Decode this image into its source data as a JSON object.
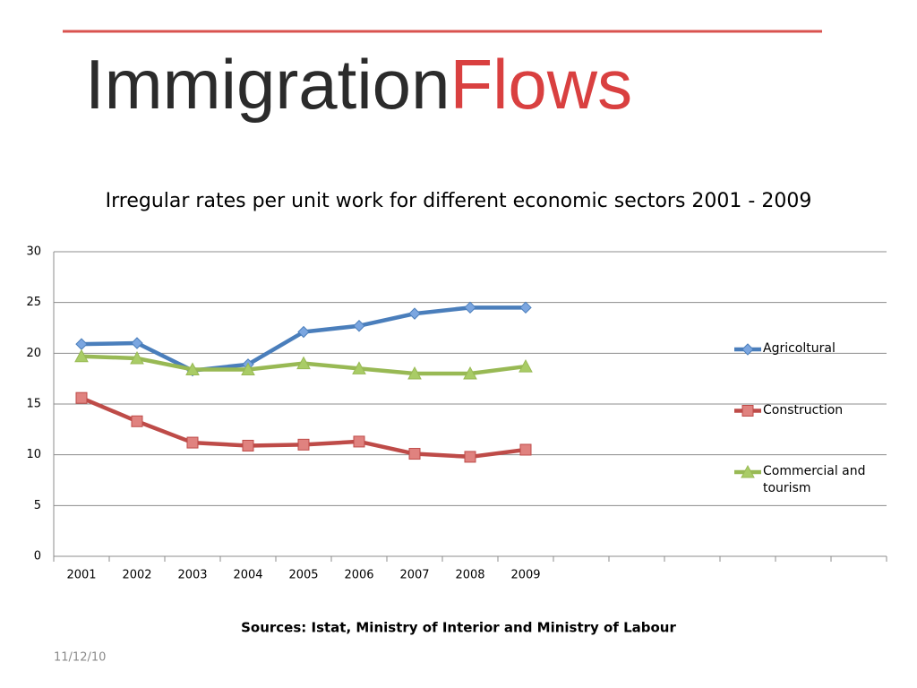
{
  "slide": {
    "logo_dark": "Immigration",
    "logo_red": "Flows",
    "source": "Sources: Istat, Ministry of Interior  and Ministry of Labour",
    "date": "11/12/10"
  },
  "chart_data": {
    "type": "line",
    "title": "Irregular rates per unit work for different economic sectors 2001 - 2009",
    "categories": [
      "2001",
      "2002",
      "2003",
      "2004",
      "2005",
      "2006",
      "2007",
      "2008",
      "2009",
      null,
      null,
      null,
      null,
      null,
      null
    ],
    "series": [
      {
        "name": "Agricoltural",
        "color": "#4a7ebb",
        "marker": "diamond",
        "marker_fill": "#7ba6e0",
        "values": [
          20.9,
          21.0,
          18.3,
          18.9,
          22.1,
          22.7,
          23.9,
          24.5,
          24.5,
          null,
          null,
          null,
          null,
          null,
          null
        ]
      },
      {
        "name": "Construction",
        "color": "#be4b48",
        "marker": "square",
        "marker_fill": "#e0827f",
        "values": [
          15.6,
          13.3,
          11.2,
          10.9,
          11.0,
          11.3,
          10.1,
          9.8,
          10.5,
          null,
          null,
          null,
          null,
          null,
          null
        ]
      },
      {
        "name": "Commercial and tourism",
        "color": "#98b954",
        "marker": "triangle",
        "marker_fill": "#a9cc66",
        "values": [
          19.7,
          19.5,
          18.4,
          18.4,
          19.0,
          18.5,
          18.0,
          18.0,
          18.7,
          null,
          null,
          null,
          null,
          null,
          null
        ]
      }
    ],
    "ylim": [
      0,
      30
    ],
    "yticks": [
      0,
      5,
      10,
      15,
      20,
      25,
      30
    ],
    "grid": true,
    "legend": "right"
  }
}
